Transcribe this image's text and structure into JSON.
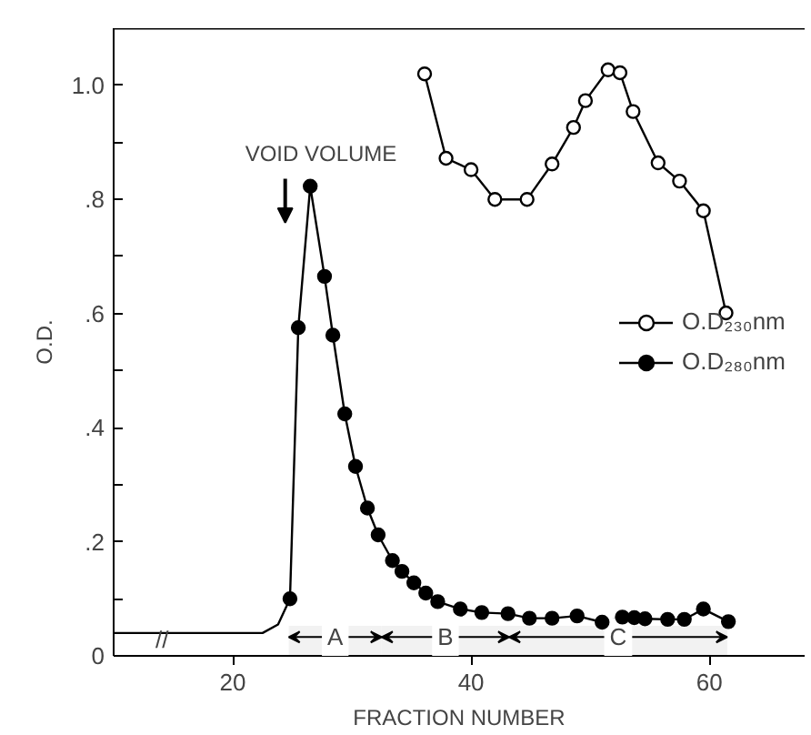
{
  "chart_data": {
    "type": "line",
    "xlabel": "FRACTION NUMBER",
    "ylabel": "O.D.",
    "xlim": [
      10,
      68
    ],
    "ylim": [
      0,
      1.1
    ],
    "xticks": [
      20,
      40,
      60
    ],
    "yticks": [
      {
        "value": 0,
        "label": "0"
      },
      {
        "value": 0.1,
        "label": null
      },
      {
        "value": 0.2,
        "label": ".2"
      },
      {
        "value": 0.3,
        "label": null
      },
      {
        "value": 0.4,
        "label": ".4"
      },
      {
        "value": 0.5,
        "label": null
      },
      {
        "value": 0.6,
        "label": ".6"
      },
      {
        "value": 0.7,
        "label": null
      },
      {
        "value": 0.8,
        "label": ".8"
      },
      {
        "value": 0.9,
        "label": null
      },
      {
        "value": 1.0,
        "label": "1.0"
      }
    ],
    "grid": false,
    "legend": "right",
    "line_style": "solid",
    "series": [
      {
        "name": "O.D₂₃₀nm",
        "color": "#000000",
        "marker": "circle",
        "x": [
          36.1,
          37.9,
          40.0,
          42.0,
          44.7,
          46.8,
          48.6,
          49.6,
          51.5,
          52.5,
          53.6,
          55.7,
          57.5,
          59.5,
          61.4
        ],
        "values": [
          1.02,
          0.872,
          0.852,
          0.8,
          0.8,
          0.862,
          0.926,
          0.973,
          1.027,
          1.022,
          0.954,
          0.864,
          0.832,
          0.78,
          0.601
        ]
      },
      {
        "name": "O.D₂₈₀nm",
        "color": "#000000",
        "marker": "circle",
        "x": [
          24.8,
          25.5,
          26.5,
          27.7,
          28.4,
          29.4,
          30.3,
          31.3,
          32.2,
          33.4,
          34.2,
          35.2,
          36.2,
          37.2,
          39.1,
          40.9,
          43.1,
          44.9,
          46.8,
          48.9,
          51.0,
          52.7,
          53.7,
          54.6,
          56.5,
          57.9,
          59.5,
          61.6
        ],
        "values": [
          0.1,
          0.575,
          0.823,
          0.665,
          0.562,
          0.424,
          0.332,
          0.259,
          0.212,
          0.167,
          0.148,
          0.128,
          0.11,
          0.095,
          0.082,
          0.076,
          0.074,
          0.066,
          0.066,
          0.07,
          0.059,
          0.068,
          0.067,
          0.065,
          0.064,
          0.064,
          0.082,
          0.06
        ]
      },
      {
        "color": "#000000",
        "marker": "none",
        "x": [
          10,
          22.5,
          23.8,
          24.8
        ],
        "values": [
          0.04,
          0.04,
          0.055,
          0.1
        ]
      }
    ],
    "bands": [
      {
        "axis": "x",
        "from": 24.7,
        "to": 32.5,
        "label": "A",
        "color": "#f2f2f2"
      },
      {
        "axis": "x",
        "from": 32.5,
        "to": 43.2,
        "label": "B",
        "color": "#f2f2f2"
      },
      {
        "axis": "x",
        "from": 43.2,
        "to": 61.5,
        "label": "C",
        "color": "#f2f2f2"
      }
    ],
    "annotations": [
      "VOID VOLUME",
      "//"
    ]
  }
}
